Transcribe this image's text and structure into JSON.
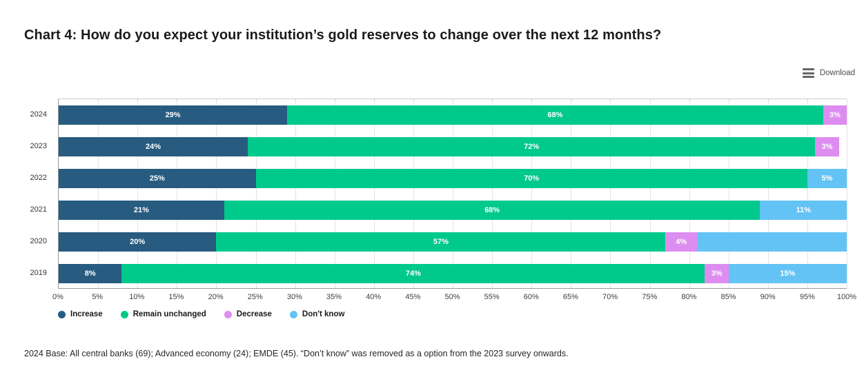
{
  "header": {
    "title": "Chart 4: How do you expect your institution’s gold reserves to change over the next 12 months?",
    "download_label": "Download"
  },
  "chart_data": {
    "type": "bar",
    "orientation": "horizontal-stacked",
    "title": "Chart 4: How do you expect your institution’s gold reserves to change over the next 12 months?",
    "categories": [
      "2024",
      "2023",
      "2022",
      "2021",
      "2020",
      "2019"
    ],
    "series": [
      {
        "name": "Increase",
        "color": "#275b80",
        "values": [
          29,
          24,
          25,
          21,
          20,
          8
        ]
      },
      {
        "name": "Remain unchanged",
        "color": "#00c98c",
        "values": [
          68,
          72,
          70,
          68,
          57,
          74
        ]
      },
      {
        "name": "Decrease",
        "color": "#dd8df0",
        "values": [
          3,
          3,
          0,
          0,
          4,
          3
        ]
      },
      {
        "name": "Don't know",
        "color": "#63c3f5",
        "values": [
          0,
          0,
          5,
          11,
          19,
          15
        ]
      }
    ],
    "data_label_format": "{value}%",
    "hidden_labels": [
      {
        "category": "2020",
        "series": "Don't know"
      }
    ],
    "xlim": [
      0,
      100
    ],
    "tick_step": 5,
    "x_ticks": [
      "0%",
      "5%",
      "10%",
      "15%",
      "20%",
      "25%",
      "30%",
      "35%",
      "40%",
      "45%",
      "50%",
      "55%",
      "60%",
      "65%",
      "70%",
      "75%",
      "80%",
      "85%",
      "90%",
      "95%",
      "100%"
    ],
    "grid": "vertical-dotted",
    "legend_position": "bottom-left",
    "legend": [
      "Increase",
      "Remain unchanged",
      "Decrease",
      "Don't know"
    ]
  },
  "footnote": "2024 Base: All central banks (69); Advanced economy (24); EMDE (45). “Don’t know” was removed as a option from the 2023 survey onwards."
}
